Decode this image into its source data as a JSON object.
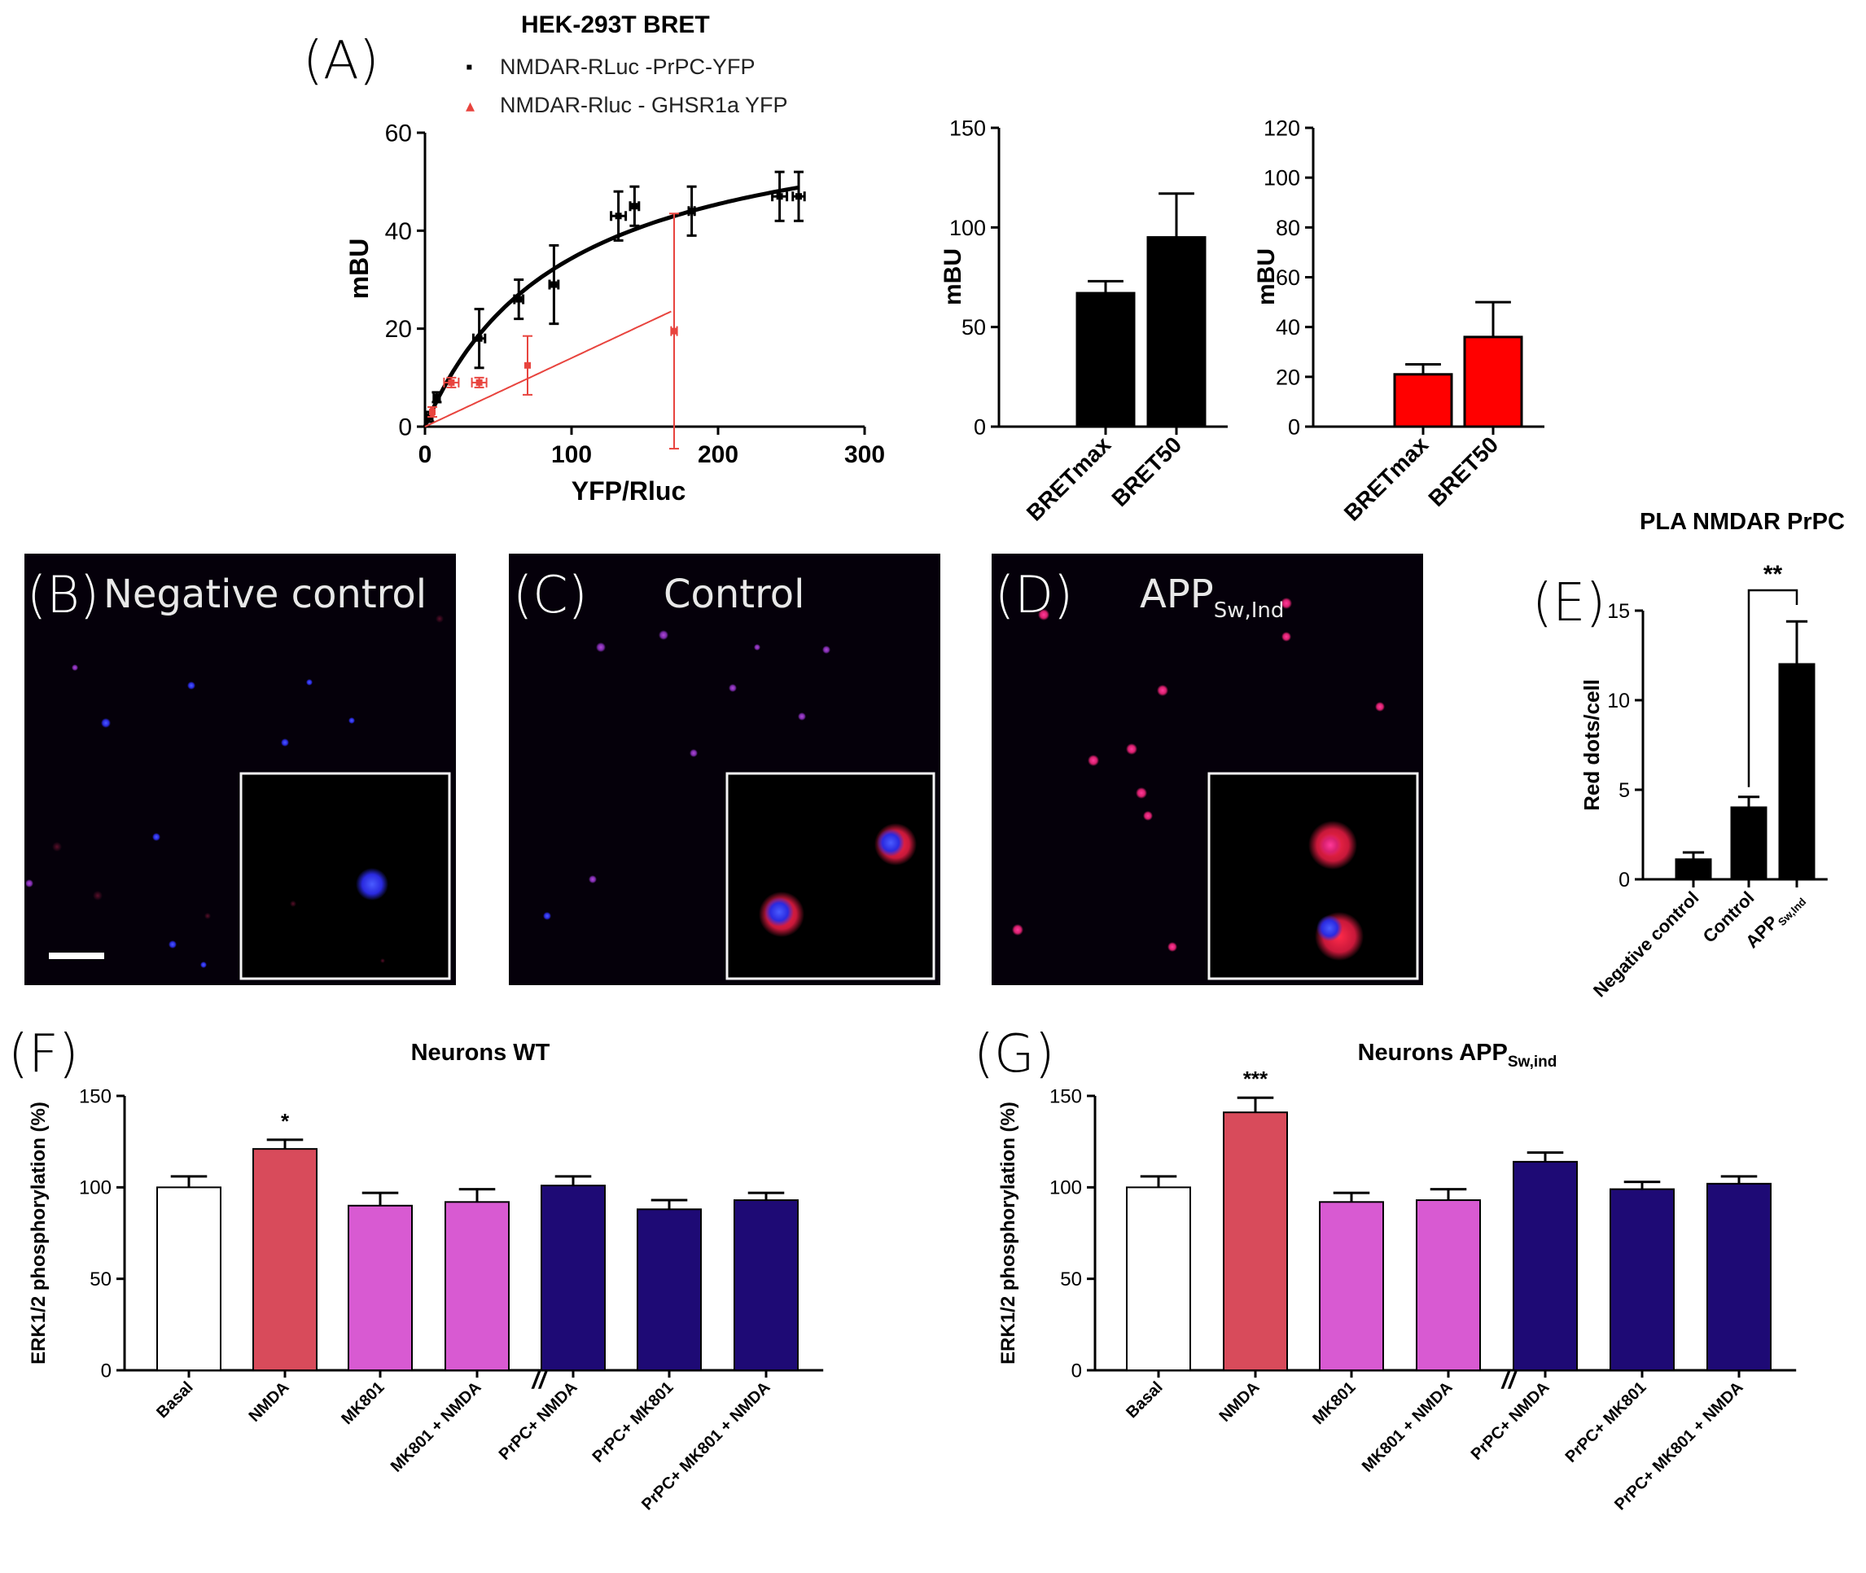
{
  "panel_labels": {
    "A": "(A)",
    "B": "(B)",
    "C": "(C)",
    "D": "(D)",
    "E": "(E)",
    "F": "(F)",
    "G": "(G)"
  },
  "panel_A": {
    "title": "HEK-293T BRET",
    "legend": [
      {
        "symbol": "▪",
        "text": "NMDAR-RLuc -PrPC-YFP",
        "color": "#000000"
      },
      {
        "symbol": "▴",
        "text": "NMDAR-Rluc - GHSR1a YFP",
        "color": "#e8443e"
      }
    ]
  },
  "microscopy": {
    "B": {
      "title": "Negative control"
    },
    "C": {
      "title": "Control"
    },
    "D": {
      "title": "APP",
      "subscript": "Sw,Ind"
    }
  },
  "chart_data": [
    {
      "id": "saturation",
      "type": "scatter",
      "xlabel": "YFP/Rluc",
      "ylabel": "mBU",
      "xlim": [
        0,
        300
      ],
      "ylim": [
        0,
        60
      ],
      "xticks": [
        "0",
        "100",
        "200",
        "300"
      ],
      "yticks": [
        "0",
        "20",
        "40",
        "60"
      ],
      "series": [
        {
          "name": "NMDAR-RLuc -PrPC-YFP",
          "color": "#000000",
          "points": [
            [
              3,
              2,
              2,
              1
            ],
            [
              8,
              6,
              2,
              1
            ],
            [
              37,
              18,
              4,
              6
            ],
            [
              64,
              26,
              3,
              4
            ],
            [
              88,
              29,
              3,
              8
            ],
            [
              132,
              43,
              5,
              5
            ],
            [
              143,
              45,
              3,
              4
            ],
            [
              182,
              44,
              2,
              5
            ],
            [
              242,
              47,
              5,
              5
            ],
            [
              255,
              47,
              4,
              5
            ]
          ],
          "fit": {
            "kind": "hyperbolic",
            "bmax": 67,
            "k": 95,
            "x_end": 255
          }
        },
        {
          "name": "NMDAR-Rluc - GHSR1a YFP",
          "color": "#e8443e",
          "points": [
            [
              5,
              3,
              1,
              1
            ],
            [
              18,
              9,
              5,
              1
            ],
            [
              37,
              9,
              5,
              1
            ],
            [
              70,
              12.5,
              0,
              6
            ],
            [
              170,
              19.5,
              2,
              24
            ]
          ],
          "fit": {
            "kind": "linear",
            "slope": 0.14,
            "x_end": 168
          }
        }
      ]
    },
    {
      "id": "bret_black",
      "type": "bar",
      "ylabel": "mBU",
      "categories": [
        "BRETmax",
        "BRET50"
      ],
      "values": [
        67,
        95
      ],
      "errors": [
        6,
        22
      ],
      "ylim": [
        0,
        150
      ],
      "yticks": [
        "0",
        "50",
        "100",
        "150"
      ],
      "color": "#000000"
    },
    {
      "id": "bret_red",
      "type": "bar",
      "ylabel": "mBU",
      "categories": [
        "BRETmax",
        "BRET50"
      ],
      "values": [
        21,
        36
      ],
      "errors": [
        4,
        14
      ],
      "ylim": [
        0,
        120
      ],
      "yticks": [
        "0",
        "20",
        "40",
        "60",
        "80",
        "100",
        "120"
      ],
      "color": "#ff0000"
    },
    {
      "id": "pla",
      "type": "bar",
      "title": "PLA NMDAR PrPC",
      "ylabel": "Red dots/cell",
      "categories": [
        "Negative control",
        "Control",
        "APP"
      ],
      "category_subscripts": [
        "",
        "",
        "Sw,Ind"
      ],
      "values": [
        1.1,
        4.0,
        12.0
      ],
      "errors": [
        0.4,
        0.6,
        2.4
      ],
      "ylim": [
        0,
        15
      ],
      "yticks": [
        "0",
        "5",
        "10",
        "15"
      ],
      "color": "#000000",
      "significance": {
        "label": "**",
        "from": 1,
        "to": 2
      }
    },
    {
      "id": "erk_wt",
      "type": "bar",
      "title": "Neurons WT",
      "title_sub": "",
      "ylabel": "ERK1/2 phosphorylation (%)",
      "categories": [
        "Basal",
        "NMDA",
        "MK801",
        "MK801 + NMDA",
        "PrPC+ NMDA",
        "PrPC+ MK801",
        "PrPC+ MK801 + NMDA"
      ],
      "values": [
        100,
        121,
        90,
        92,
        101,
        88,
        93
      ],
      "errors": [
        6,
        5,
        7,
        7,
        5,
        5,
        4
      ],
      "colors": [
        "#ffffff",
        "#d84b5b",
        "#d85ad2",
        "#d85ad2",
        "#1e0a75",
        "#1e0a75",
        "#1e0a75"
      ],
      "stars": [
        "",
        "*",
        "",
        "",
        "",
        "",
        ""
      ],
      "ylim": [
        0,
        150
      ],
      "yticks": [
        "0",
        "50",
        "100",
        "150"
      ],
      "break_marker": "//"
    },
    {
      "id": "erk_app",
      "type": "bar",
      "title": "Neurons APP",
      "title_sub": "Sw,ind",
      "ylabel": "ERK1/2 phosphorylation (%)",
      "categories": [
        "Basal",
        "NMDA",
        "MK801",
        "MK801 + NMDA",
        "PrPC+ NMDA",
        "PrPC+ MK801",
        "PrPC+ MK801 + NMDA"
      ],
      "values": [
        100,
        141,
        92,
        93,
        114,
        99,
        102
      ],
      "errors": [
        6,
        8,
        5,
        6,
        5,
        4,
        4
      ],
      "colors": [
        "#ffffff",
        "#d84b5b",
        "#d85ad2",
        "#d85ad2",
        "#1e0a75",
        "#1e0a75",
        "#1e0a75"
      ],
      "stars": [
        "",
        "***",
        "",
        "",
        "",
        "",
        ""
      ],
      "ylim": [
        0,
        150
      ],
      "yticks": [
        "0",
        "50",
        "100",
        "150"
      ],
      "break_marker": "//"
    }
  ]
}
